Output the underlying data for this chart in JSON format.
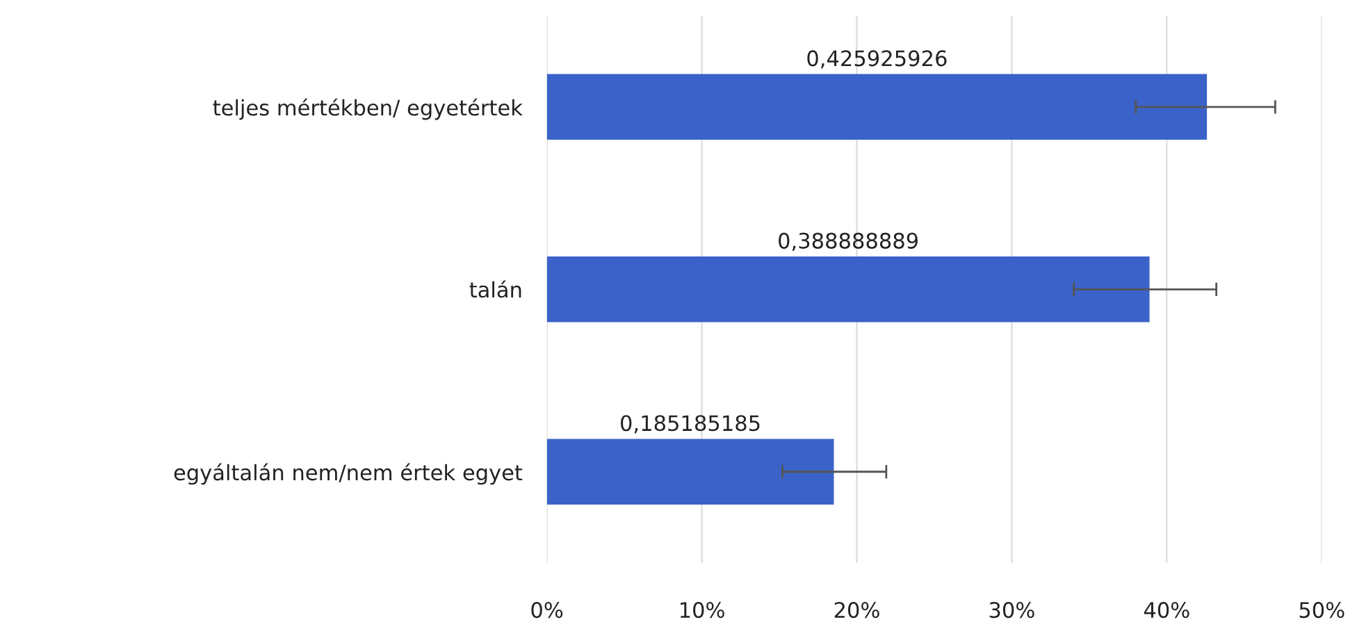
{
  "chart_data": {
    "type": "bar",
    "orientation": "horizontal",
    "categories": [
      "teljes mértékben/ egyetértek",
      "talán",
      "egyáltalán nem/nem értek egyet"
    ],
    "values": [
      0.425925926,
      0.388888889,
      0.185185185
    ],
    "value_labels": [
      "0,425925926",
      "0,388888889",
      "0,185185185"
    ],
    "errors": [
      [
        0.38,
        0.47
      ],
      [
        0.34,
        0.432
      ],
      [
        0.152,
        0.219
      ]
    ],
    "color": "#3a62c9",
    "xlim": [
      0,
      0.5
    ],
    "xticks": [
      {
        "value": 0,
        "label": "0%"
      },
      {
        "value": 0.1,
        "label": "10%"
      },
      {
        "value": 0.2,
        "label": "20%"
      },
      {
        "value": 0.3,
        "label": "30%"
      },
      {
        "value": 0.4,
        "label": "40%"
      },
      {
        "value": 0.5,
        "label": "50%"
      }
    ],
    "grid": "x"
  }
}
